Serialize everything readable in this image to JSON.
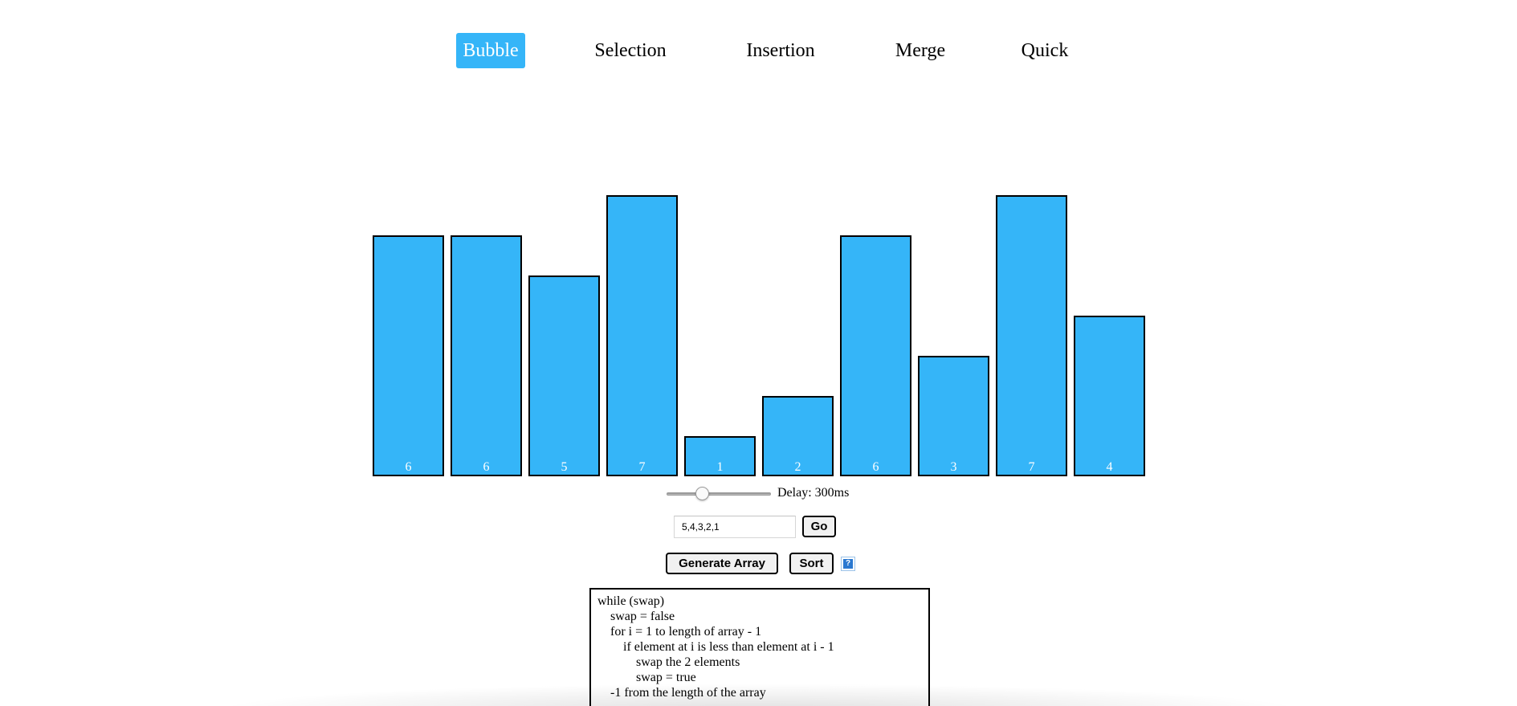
{
  "nav": {
    "items": [
      {
        "label": "Bubble",
        "active": true
      },
      {
        "label": "Selection",
        "active": false
      },
      {
        "label": "Insertion",
        "active": false
      },
      {
        "label": "Merge",
        "active": false
      },
      {
        "label": "Quick",
        "active": false
      }
    ]
  },
  "chart_data": {
    "type": "bar",
    "values": [
      6,
      6,
      5,
      7,
      1,
      2,
      6,
      3,
      7,
      4
    ],
    "bar_color": "#35b5f8",
    "border_color": "#000000",
    "label_color": "#ffffff"
  },
  "controls": {
    "delay_text": "Delay: 300ms",
    "array_input_value": "5,4,3,2,1",
    "go_label": "Go",
    "generate_label": "Generate Array",
    "sort_label": "Sort",
    "help_icon": "?"
  },
  "pseudocode": [
    "while (swap)",
    "    swap = false",
    "    for i = 1 to length of array - 1",
    "        if element at i is less than element at i - 1",
    "            swap the 2 elements",
    "            swap = true",
    "    -1 from the length of the array"
  ],
  "colors": {
    "accent": "#35b5f8",
    "help_icon": "#2a78d0"
  }
}
